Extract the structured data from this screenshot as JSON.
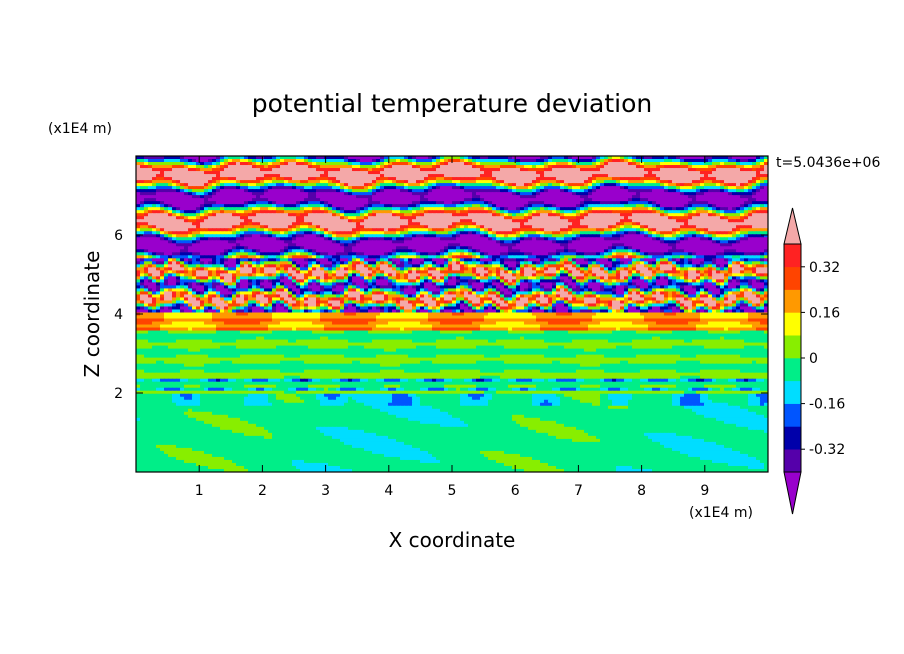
{
  "chart_data": {
    "type": "heatmap",
    "title": "potential temperature deviation",
    "xlabel": "X coordinate",
    "ylabel": "Z coordinate",
    "x_unit": "(x1E4 m)",
    "y_unit": "(x1E4 m)",
    "time_label": "t=5.0436e+06",
    "xlim": [
      0,
      10
    ],
    "ylim": [
      0,
      8
    ],
    "x_ticks": [
      "1",
      "2",
      "3",
      "4",
      "5",
      "6",
      "7",
      "8",
      "9"
    ],
    "y_ticks": [
      "2",
      "4",
      "6"
    ],
    "colorbar": {
      "levels": [
        -0.4,
        -0.32,
        -0.24,
        -0.16,
        -0.08,
        0,
        0.08,
        0.16,
        0.24,
        0.32,
        0.4
      ],
      "labels": [
        "0.32",
        "0.16",
        "0",
        "-0.16",
        "-0.32"
      ],
      "label_values": [
        0.32,
        0.16,
        0,
        -0.16,
        -0.32
      ],
      "colors": [
        "#9900cc",
        "#5500aa",
        "#0000aa",
        "#0055ff",
        "#00ddff",
        "#00ee88",
        "#88ee00",
        "#ffff00",
        "#ff9900",
        "#ff4400",
        "#ff2222",
        "#f4a8a8"
      ],
      "extend": "both"
    },
    "bands": [
      {
        "z_from": 0.0,
        "z_to": 0.6,
        "field": "cool"
      },
      {
        "z_from": 0.6,
        "z_to": 2.0,
        "field": "mixed-cool"
      },
      {
        "z_from": 2.0,
        "z_to": 3.5,
        "field": "near-zero"
      },
      {
        "z_from": 3.5,
        "z_to": 4.0,
        "field": "warm"
      },
      {
        "z_from": 4.0,
        "z_to": 5.5,
        "field": "turbulent"
      },
      {
        "z_from": 5.5,
        "z_to": 8.0,
        "field": "strong-alternating"
      }
    ]
  }
}
